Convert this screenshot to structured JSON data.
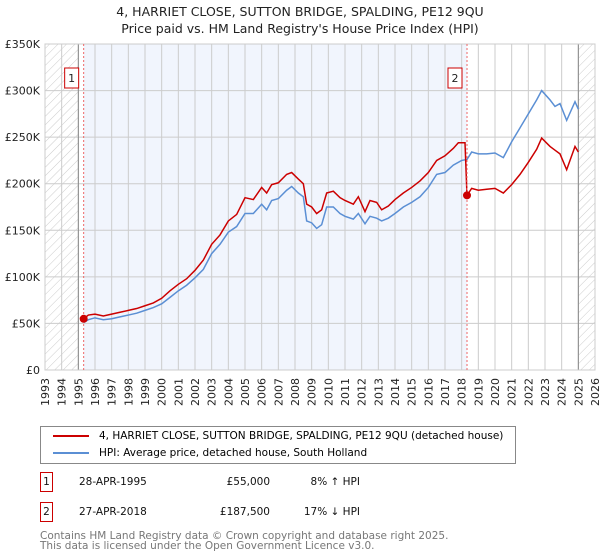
{
  "chart_data": {
    "type": "line",
    "title": "4, HARRIET CLOSE, SUTTON BRIDGE, SPALDING, PE12 9QU",
    "subtitle": "Price paid vs. HM Land Registry's House Price Index (HPI)",
    "xlim": [
      1993,
      2026
    ],
    "ylim": [
      0,
      350000
    ],
    "x_ticks": [
      "1993",
      "1994",
      "1995",
      "1996",
      "1997",
      "1998",
      "1999",
      "2000",
      "2001",
      "2002",
      "2003",
      "2004",
      "2005",
      "2006",
      "2007",
      "2008",
      "2009",
      "2010",
      "2011",
      "2012",
      "2013",
      "2014",
      "2015",
      "2016",
      "2017",
      "2018",
      "2019",
      "2020",
      "2021",
      "2022",
      "2023",
      "2024",
      "2025",
      "2026"
    ],
    "y_ticks": [
      {
        "v": 0,
        "label": "£0"
      },
      {
        "v": 50000,
        "label": "£50K"
      },
      {
        "v": 100000,
        "label": "£100K"
      },
      {
        "v": 150000,
        "label": "£150K"
      },
      {
        "v": 200000,
        "label": "£200K"
      },
      {
        "v": 250000,
        "label": "£250K"
      },
      {
        "v": 300000,
        "label": "£300K"
      },
      {
        "v": 350000,
        "label": "£350K"
      }
    ],
    "grid": true,
    "shaded_period": [
      1995.32,
      2018.32
    ],
    "hatched_before": 1995,
    "hatched_after": 2025,
    "series": [
      {
        "name": "4, HARRIET CLOSE, SUTTON BRIDGE, SPALDING, PE12 9QU (detached house)",
        "color": "#cc0000",
        "points": [
          [
            1995.32,
            55000
          ],
          [
            1995.6,
            59000
          ],
          [
            1996,
            60000
          ],
          [
            1996.5,
            58000
          ],
          [
            1997,
            60000
          ],
          [
            1997.5,
            62000
          ],
          [
            1998,
            64000
          ],
          [
            1998.5,
            66000
          ],
          [
            1999,
            69000
          ],
          [
            1999.5,
            72000
          ],
          [
            2000,
            77000
          ],
          [
            2000.5,
            85000
          ],
          [
            2001,
            92000
          ],
          [
            2001.5,
            98000
          ],
          [
            2002,
            107000
          ],
          [
            2002.5,
            118000
          ],
          [
            2003,
            135000
          ],
          [
            2003.5,
            145000
          ],
          [
            2004,
            160000
          ],
          [
            2004.5,
            167000
          ],
          [
            2005,
            185000
          ],
          [
            2005.5,
            183000
          ],
          [
            2006,
            196000
          ],
          [
            2006.3,
            190000
          ],
          [
            2006.6,
            199000
          ],
          [
            2007,
            201000
          ],
          [
            2007.5,
            210000
          ],
          [
            2007.8,
            212000
          ],
          [
            2008.2,
            205000
          ],
          [
            2008.5,
            200000
          ],
          [
            2008.7,
            178000
          ],
          [
            2009,
            175000
          ],
          [
            2009.3,
            168000
          ],
          [
            2009.6,
            172000
          ],
          [
            2009.9,
            190000
          ],
          [
            2010.3,
            192000
          ],
          [
            2010.7,
            185000
          ],
          [
            2011,
            182000
          ],
          [
            2011.5,
            178000
          ],
          [
            2011.8,
            186000
          ],
          [
            2012.2,
            170000
          ],
          [
            2012.5,
            182000
          ],
          [
            2012.9,
            180000
          ],
          [
            2013.2,
            172000
          ],
          [
            2013.6,
            176000
          ],
          [
            2014,
            183000
          ],
          [
            2014.5,
            190000
          ],
          [
            2015,
            196000
          ],
          [
            2015.5,
            203000
          ],
          [
            2016,
            212000
          ],
          [
            2016.5,
            225000
          ],
          [
            2017,
            230000
          ],
          [
            2017.5,
            238000
          ],
          [
            2017.8,
            244000
          ],
          [
            2018.2,
            244000
          ],
          [
            2018.32,
            187500
          ],
          [
            2018.6,
            195000
          ],
          [
            2019,
            193000
          ],
          [
            2019.5,
            194000
          ],
          [
            2020,
            195000
          ],
          [
            2020.5,
            190000
          ],
          [
            2021,
            199000
          ],
          [
            2021.5,
            210000
          ],
          [
            2022,
            223000
          ],
          [
            2022.5,
            237000
          ],
          [
            2022.8,
            249000
          ],
          [
            2023.3,
            240000
          ],
          [
            2023.6,
            236000
          ],
          [
            2023.9,
            232000
          ],
          [
            2024.3,
            215000
          ],
          [
            2024.8,
            240000
          ],
          [
            2025,
            234000
          ]
        ]
      },
      {
        "name": "HPI: Average price, detached house, South Holland",
        "color": "#5b8fd4",
        "points": [
          [
            1995.32,
            51000
          ],
          [
            1995.6,
            54000
          ],
          [
            1996,
            56000
          ],
          [
            1996.5,
            54000
          ],
          [
            1997,
            55000
          ],
          [
            1997.5,
            57000
          ],
          [
            1998,
            59000
          ],
          [
            1998.5,
            61000
          ],
          [
            1999,
            64000
          ],
          [
            1999.5,
            67000
          ],
          [
            2000,
            71000
          ],
          [
            2000.5,
            78000
          ],
          [
            2001,
            85000
          ],
          [
            2001.5,
            91000
          ],
          [
            2002,
            99000
          ],
          [
            2002.5,
            108000
          ],
          [
            2003,
            125000
          ],
          [
            2003.5,
            135000
          ],
          [
            2004,
            148000
          ],
          [
            2004.5,
            154000
          ],
          [
            2005,
            168000
          ],
          [
            2005.5,
            168000
          ],
          [
            2006,
            178000
          ],
          [
            2006.3,
            172000
          ],
          [
            2006.6,
            182000
          ],
          [
            2007,
            184000
          ],
          [
            2007.5,
            193000
          ],
          [
            2007.8,
            197000
          ],
          [
            2008.2,
            190000
          ],
          [
            2008.5,
            186000
          ],
          [
            2008.7,
            160000
          ],
          [
            2009,
            158000
          ],
          [
            2009.3,
            152000
          ],
          [
            2009.6,
            156000
          ],
          [
            2009.9,
            175000
          ],
          [
            2010.3,
            175000
          ],
          [
            2010.7,
            168000
          ],
          [
            2011,
            165000
          ],
          [
            2011.5,
            162000
          ],
          [
            2011.8,
            168000
          ],
          [
            2012.2,
            157000
          ],
          [
            2012.5,
            165000
          ],
          [
            2012.9,
            163000
          ],
          [
            2013.2,
            160000
          ],
          [
            2013.6,
            163000
          ],
          [
            2014,
            168000
          ],
          [
            2014.5,
            175000
          ],
          [
            2015,
            180000
          ],
          [
            2015.5,
            186000
          ],
          [
            2016,
            196000
          ],
          [
            2016.5,
            210000
          ],
          [
            2017,
            212000
          ],
          [
            2017.5,
            220000
          ],
          [
            2018,
            225000
          ],
          [
            2018.32,
            226000
          ],
          [
            2018.6,
            234000
          ],
          [
            2019,
            232000
          ],
          [
            2019.5,
            232000
          ],
          [
            2020,
            233000
          ],
          [
            2020.5,
            228000
          ],
          [
            2021,
            245000
          ],
          [
            2021.5,
            260000
          ],
          [
            2022,
            275000
          ],
          [
            2022.5,
            290000
          ],
          [
            2022.8,
            300000
          ],
          [
            2023.3,
            290000
          ],
          [
            2023.6,
            283000
          ],
          [
            2023.9,
            286000
          ],
          [
            2024.3,
            268000
          ],
          [
            2024.8,
            288000
          ],
          [
            2025,
            280000
          ]
        ]
      }
    ],
    "annotations": [
      {
        "label": "1",
        "x": 1995.32,
        "y": 55000
      },
      {
        "label": "2",
        "x": 2018.32,
        "y": 187500
      }
    ]
  },
  "legend": {
    "red": "4, HARRIET CLOSE, SUTTON BRIDGE, SPALDING, PE12 9QU (detached house)",
    "blue": "HPI: Average price, detached house, South Holland"
  },
  "transactions": [
    {
      "num": "1",
      "date": "28-APR-1995",
      "price": "£55,000",
      "hpi": "8% ↑ HPI"
    },
    {
      "num": "2",
      "date": "27-APR-2018",
      "price": "£187,500",
      "hpi": "17% ↓ HPI"
    }
  ],
  "footer": {
    "line1": "Contains HM Land Registry data © Crown copyright and database right 2025.",
    "line2": "This data is licensed under the Open Government Licence v3.0."
  }
}
